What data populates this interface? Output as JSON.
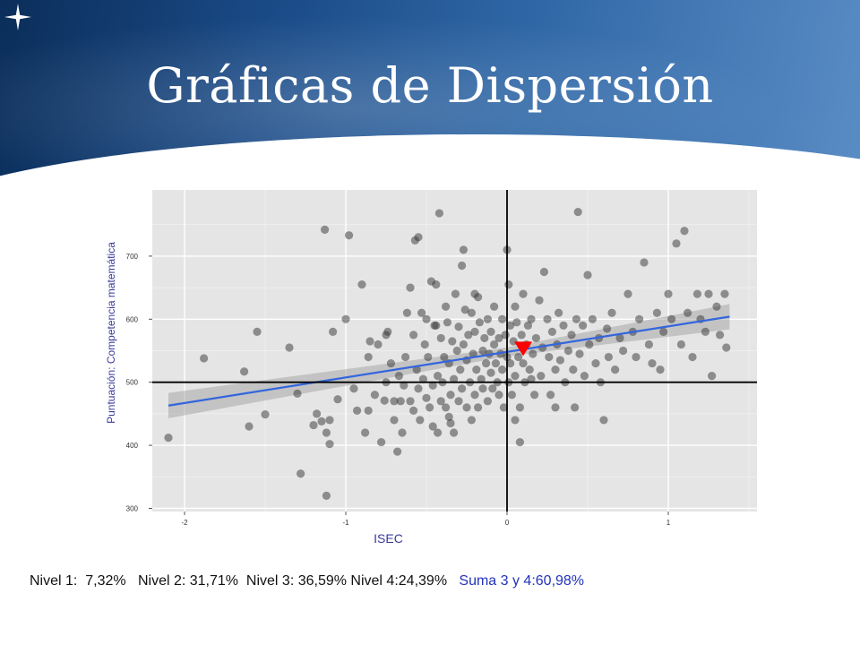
{
  "slide": {
    "title": "Gráficas de Dispersión",
    "icon": "star-icon",
    "accent": "#1a4a86"
  },
  "footer": {
    "nivel1": "Nivel 1:  7,32%",
    "nivel2": "Nivel 2: 31,71%",
    "nivel3": "Nivel 3: 36,59%",
    "nivel4": "Nivel 4:24,39%",
    "suma": "Suma 3 y 4:60,98%"
  },
  "chart_data": {
    "type": "scatter",
    "xlabel": "ISEC",
    "ylabel": "Puntuación: Competencia matemática",
    "xlim": [
      -2.2,
      1.55
    ],
    "ylim": [
      295,
      805
    ],
    "xticks": [
      -2,
      -1,
      0,
      1
    ],
    "yticks": [
      300,
      400,
      500,
      600,
      700
    ],
    "xtick_labels": [
      "-2",
      "-1",
      "0",
      "1"
    ],
    "ytick_labels": [
      "300",
      "400",
      "500",
      "600",
      "700"
    ],
    "grid": true,
    "reference_lines": {
      "x": 0,
      "y": 500
    },
    "trend_line": {
      "x": [
        -2.1,
        1.38
      ],
      "y": [
        463,
        604
      ],
      "band_halfwidth": 20
    },
    "highlight_point": {
      "x": 0.1,
      "y": 553,
      "marker": "triangle-down",
      "color": "#ff0000"
    },
    "point_color": "#333333",
    "line_color": "#3366dd",
    "points": [
      [
        -2.1,
        412
      ],
      [
        -1.88,
        538
      ],
      [
        -1.63,
        517
      ],
      [
        -1.6,
        430
      ],
      [
        -1.55,
        580
      ],
      [
        -1.5,
        449
      ],
      [
        -1.35,
        555
      ],
      [
        -1.3,
        482
      ],
      [
        -1.28,
        355
      ],
      [
        -1.2,
        432
      ],
      [
        -1.18,
        450
      ],
      [
        -1.15,
        438
      ],
      [
        -1.13,
        742
      ],
      [
        -1.12,
        320
      ],
      [
        -1.12,
        420
      ],
      [
        -1.1,
        402
      ],
      [
        -1.1,
        440
      ],
      [
        -1.08,
        580
      ],
      [
        -1.05,
        473
      ],
      [
        -1.0,
        600
      ],
      [
        -0.98,
        733
      ],
      [
        -0.95,
        490
      ],
      [
        -0.93,
        455
      ],
      [
        -0.9,
        655
      ],
      [
        -0.88,
        420
      ],
      [
        -0.86,
        540
      ],
      [
        -0.86,
        455
      ],
      [
        -0.85,
        565
      ],
      [
        -0.82,
        480
      ],
      [
        -0.8,
        560
      ],
      [
        -0.78,
        405
      ],
      [
        -0.76,
        471
      ],
      [
        -0.75,
        500
      ],
      [
        -0.74,
        580
      ],
      [
        -0.72,
        530
      ],
      [
        -0.7,
        470
      ],
      [
        -0.7,
        440
      ],
      [
        -0.68,
        390
      ],
      [
        -0.67,
        510
      ],
      [
        -0.65,
        420
      ],
      [
        -0.64,
        495
      ],
      [
        -0.63,
        540
      ],
      [
        -0.62,
        610
      ],
      [
        -0.6,
        470
      ],
      [
        -0.6,
        650
      ],
      [
        -0.58,
        455
      ],
      [
        -0.58,
        575
      ],
      [
        -0.57,
        725
      ],
      [
        -0.56,
        520
      ],
      [
        -0.55,
        730
      ],
      [
        -0.55,
        490
      ],
      [
        -0.54,
        440
      ],
      [
        -0.53,
        610
      ],
      [
        -0.52,
        505
      ],
      [
        -0.51,
        560
      ],
      [
        -0.5,
        600
      ],
      [
        -0.5,
        475
      ],
      [
        -0.49,
        540
      ],
      [
        -0.48,
        460
      ],
      [
        -0.47,
        660
      ],
      [
        -0.46,
        430
      ],
      [
        -0.46,
        495
      ],
      [
        -0.45,
        590
      ],
      [
        -0.44,
        655
      ],
      [
        -0.43,
        510
      ],
      [
        -0.43,
        420
      ],
      [
        -0.42,
        768
      ],
      [
        -0.41,
        570
      ],
      [
        -0.41,
        470
      ],
      [
        -0.4,
        500
      ],
      [
        -0.39,
        540
      ],
      [
        -0.38,
        460
      ],
      [
        -0.38,
        620
      ],
      [
        -0.37,
        595
      ],
      [
        -0.36,
        445
      ],
      [
        -0.36,
        530
      ],
      [
        -0.35,
        480
      ],
      [
        -0.34,
        565
      ],
      [
        -0.33,
        505
      ],
      [
        -0.33,
        420
      ],
      [
        -0.32,
        640
      ],
      [
        -0.31,
        550
      ],
      [
        -0.3,
        470
      ],
      [
        -0.3,
        588
      ],
      [
        -0.29,
        520
      ],
      [
        -0.28,
        685
      ],
      [
        -0.28,
        490
      ],
      [
        -0.27,
        710
      ],
      [
        -0.27,
        560
      ],
      [
        -0.26,
        615
      ],
      [
        -0.25,
        460
      ],
      [
        -0.25,
        535
      ],
      [
        -0.24,
        575
      ],
      [
        -0.23,
        500
      ],
      [
        -0.22,
        440
      ],
      [
        -0.22,
        610
      ],
      [
        -0.21,
        545
      ],
      [
        -0.2,
        480
      ],
      [
        -0.2,
        580
      ],
      [
        -0.19,
        520
      ],
      [
        -0.18,
        635
      ],
      [
        -0.18,
        460
      ],
      [
        -0.17,
        595
      ],
      [
        -0.16,
        505
      ],
      [
        -0.15,
        550
      ],
      [
        -0.15,
        490
      ],
      [
        -0.14,
        570
      ],
      [
        -0.13,
        530
      ],
      [
        -0.12,
        600
      ],
      [
        -0.12,
        470
      ],
      [
        -0.11,
        545
      ],
      [
        -0.1,
        515
      ],
      [
        -0.1,
        580
      ],
      [
        -0.09,
        490
      ],
      [
        -0.08,
        560
      ],
      [
        -0.08,
        620
      ],
      [
        -0.07,
        530
      ],
      [
        -0.06,
        500
      ],
      [
        -0.05,
        570
      ],
      [
        -0.05,
        480
      ],
      [
        -0.04,
        545
      ],
      [
        -0.03,
        600
      ],
      [
        -0.03,
        520
      ],
      [
        -0.02,
        460
      ],
      [
        -0.01,
        575
      ],
      [
        0.0,
        710
      ],
      [
        0.0,
        540
      ],
      [
        0.01,
        500
      ],
      [
        0.01,
        655
      ],
      [
        0.02,
        590
      ],
      [
        0.02,
        530
      ],
      [
        0.03,
        480
      ],
      [
        0.04,
        565
      ],
      [
        0.05,
        620
      ],
      [
        0.05,
        510
      ],
      [
        0.06,
        595
      ],
      [
        0.07,
        540
      ],
      [
        0.08,
        460
      ],
      [
        0.08,
        405
      ],
      [
        0.09,
        575
      ],
      [
        0.1,
        530
      ],
      [
        0.1,
        640
      ],
      [
        0.11,
        500
      ],
      [
        0.12,
        560
      ],
      [
        0.13,
        590
      ],
      [
        0.14,
        520
      ],
      [
        0.15,
        600
      ],
      [
        0.16,
        545
      ],
      [
        0.17,
        480
      ],
      [
        0.18,
        570
      ],
      [
        0.2,
        630
      ],
      [
        0.21,
        510
      ],
      [
        0.22,
        555
      ],
      [
        0.23,
        675
      ],
      [
        0.25,
        600
      ],
      [
        0.26,
        540
      ],
      [
        0.27,
        480
      ],
      [
        0.28,
        580
      ],
      [
        0.3,
        520
      ],
      [
        0.31,
        560
      ],
      [
        0.32,
        610
      ],
      [
        0.33,
        535
      ],
      [
        0.35,
        590
      ],
      [
        0.36,
        500
      ],
      [
        0.38,
        550
      ],
      [
        0.4,
        575
      ],
      [
        0.41,
        520
      ],
      [
        0.42,
        460
      ],
      [
        0.43,
        600
      ],
      [
        0.44,
        770
      ],
      [
        0.45,
        545
      ],
      [
        0.47,
        590
      ],
      [
        0.48,
        510
      ],
      [
        0.5,
        670
      ],
      [
        0.51,
        560
      ],
      [
        0.53,
        600
      ],
      [
        0.55,
        530
      ],
      [
        0.57,
        570
      ],
      [
        0.58,
        500
      ],
      [
        0.6,
        440
      ],
      [
        0.62,
        585
      ],
      [
        0.63,
        540
      ],
      [
        0.65,
        610
      ],
      [
        0.67,
        520
      ],
      [
        0.7,
        570
      ],
      [
        0.72,
        550
      ],
      [
        0.75,
        640
      ],
      [
        0.78,
        580
      ],
      [
        0.8,
        540
      ],
      [
        0.82,
        600
      ],
      [
        0.85,
        690
      ],
      [
        0.88,
        560
      ],
      [
        0.9,
        530
      ],
      [
        0.93,
        610
      ],
      [
        0.95,
        520
      ],
      [
        0.97,
        580
      ],
      [
        1.0,
        640
      ],
      [
        1.02,
        600
      ],
      [
        1.05,
        720
      ],
      [
        1.08,
        560
      ],
      [
        1.1,
        740
      ],
      [
        1.12,
        610
      ],
      [
        1.15,
        540
      ],
      [
        1.18,
        640
      ],
      [
        1.2,
        600
      ],
      [
        1.23,
        580
      ],
      [
        1.25,
        640
      ],
      [
        1.27,
        510
      ],
      [
        1.3,
        620
      ],
      [
        1.32,
        575
      ],
      [
        1.35,
        640
      ],
      [
        1.36,
        555
      ],
      [
        -0.66,
        470
      ],
      [
        -0.44,
        590
      ],
      [
        -0.2,
        640
      ],
      [
        0.05,
        440
      ],
      [
        0.3,
        460
      ],
      [
        -0.75,
        575
      ],
      [
        -0.35,
        435
      ],
      [
        0.15,
        505
      ]
    ]
  }
}
